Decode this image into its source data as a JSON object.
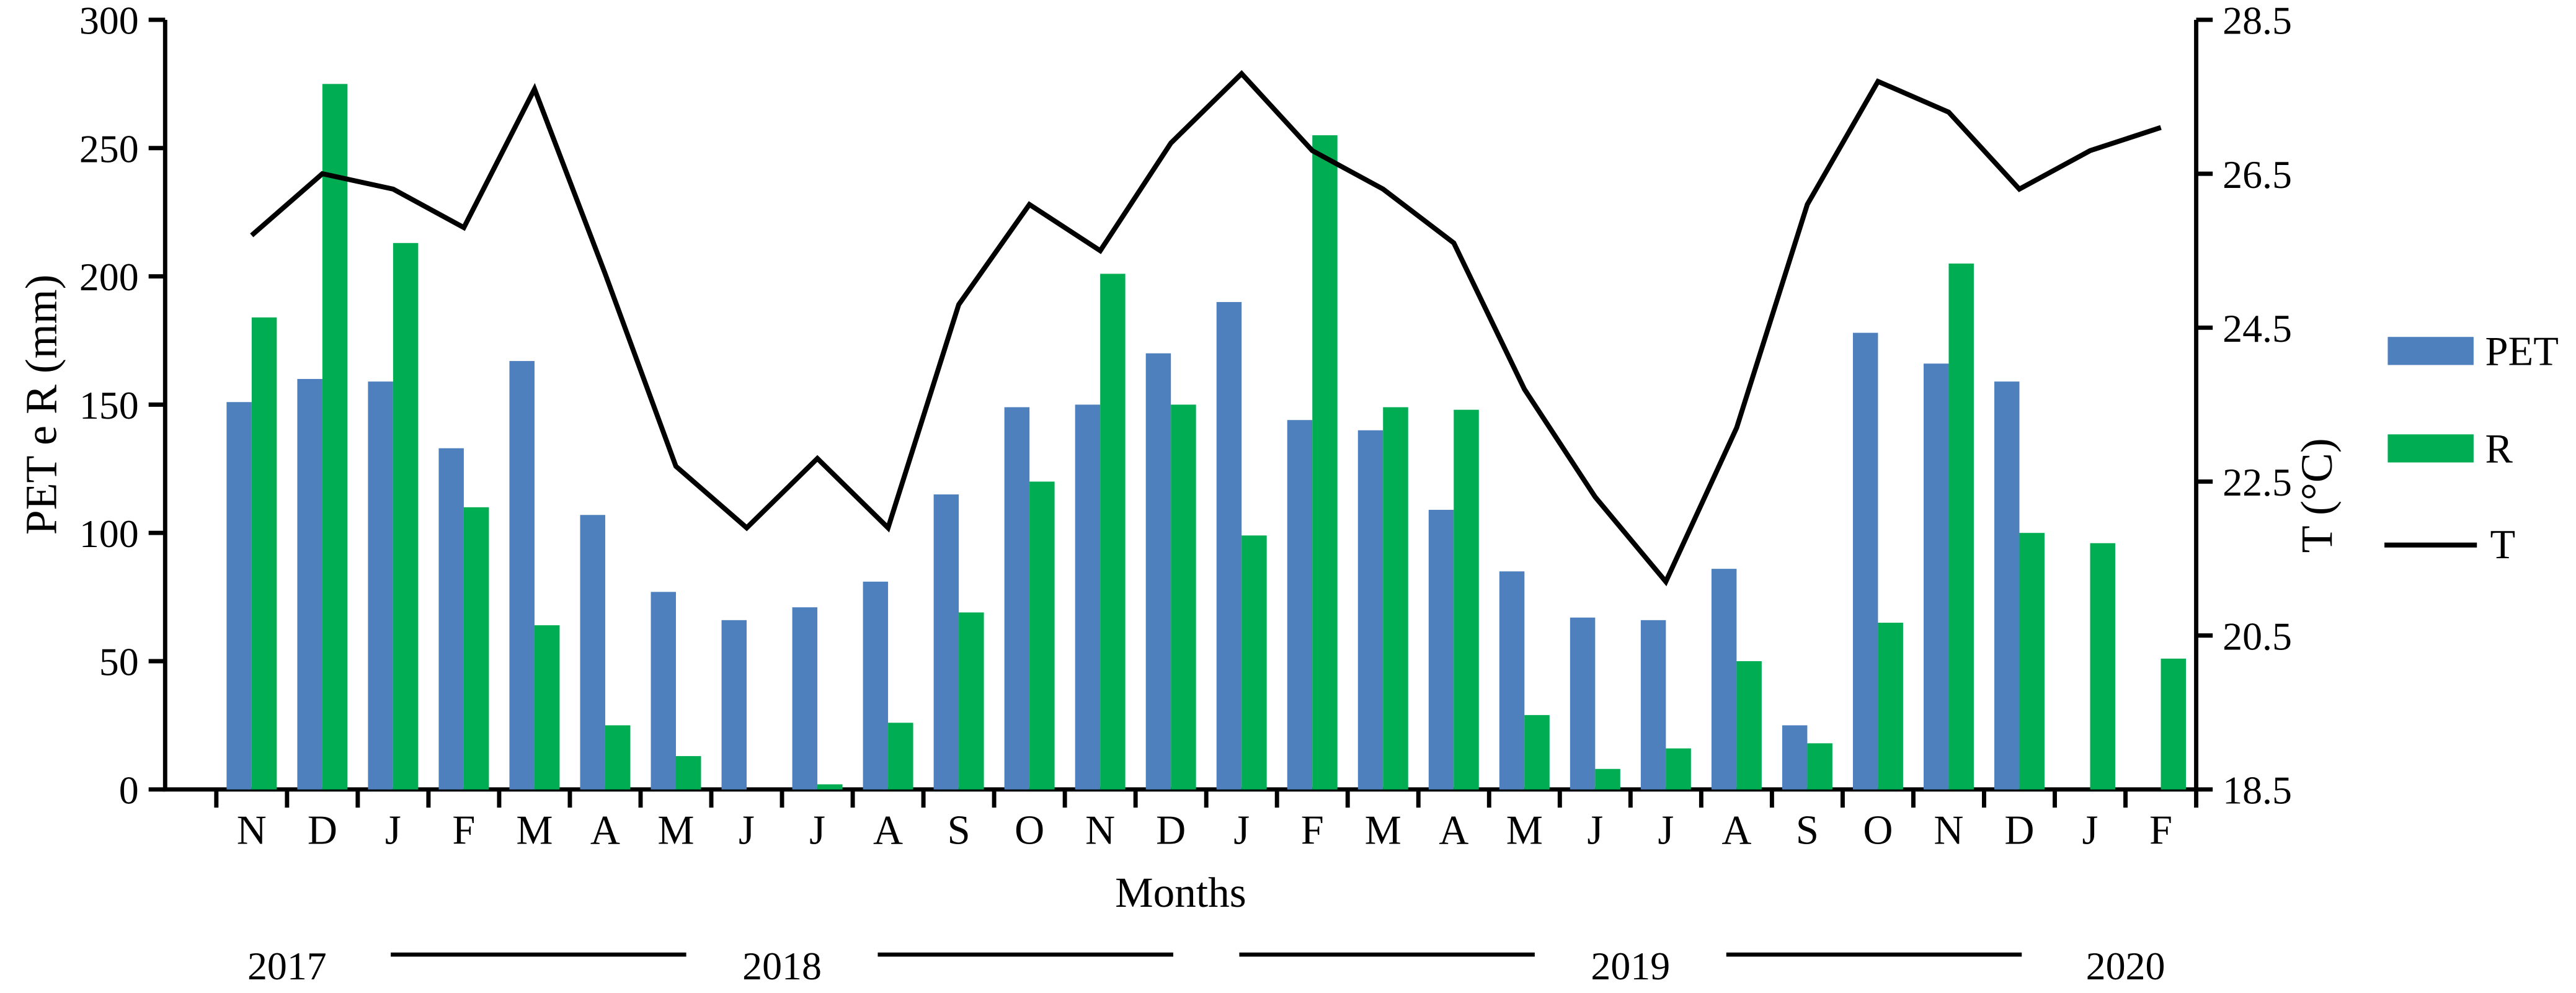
{
  "figure": {
    "background": "#ffffff",
    "axis_color": "#000000"
  },
  "chart_data": {
    "type": "combo",
    "categories": [
      "N",
      "D",
      "J",
      "F",
      "M",
      "A",
      "M",
      "J",
      "J",
      "A",
      "S",
      "O",
      "N",
      "D",
      "J",
      "F",
      "M",
      "A",
      "M",
      "J",
      "J",
      "A",
      "S",
      "O",
      "N",
      "D",
      "J",
      "F"
    ],
    "x_axis": {
      "title": "Months"
    },
    "year_groups": [
      {
        "label": "2017",
        "start": 0,
        "end": 1
      },
      {
        "label": "2018",
        "start": 2,
        "end": 13
      },
      {
        "label": "2019",
        "start": 14,
        "end": 25
      },
      {
        "label": "2020",
        "start": 26,
        "end": 27
      }
    ],
    "left_axis": {
      "title": "PET e R (mm)",
      "min": 0,
      "max": 300,
      "tick_step": 50,
      "tick_labels": [
        "300",
        "250",
        "200",
        "150",
        "100",
        "50",
        "0"
      ]
    },
    "right_axis": {
      "title": "T (°C)",
      "min": 18.5,
      "max": 28.5,
      "tick_labels": [
        "28.5",
        "26.5",
        "24.5",
        "22.5",
        "20.5",
        "18.5"
      ]
    },
    "series": [
      {
        "name": "PET",
        "type": "bar",
        "axis": "left",
        "color": "#4E80BE",
        "values": [
          151,
          160,
          159,
          133,
          167,
          107,
          77,
          66,
          71,
          81,
          115,
          149,
          150,
          170,
          190,
          144,
          140,
          109,
          85,
          67,
          66,
          86,
          25,
          178,
          166,
          159,
          0,
          0
        ]
      },
      {
        "name": "R",
        "type": "bar",
        "axis": "left",
        "color": "#00AD53",
        "values": [
          184,
          275,
          213,
          110,
          64,
          25,
          13,
          0,
          2,
          26,
          69,
          120,
          201,
          150,
          99,
          255,
          149,
          148,
          29,
          8,
          16,
          50,
          18,
          65,
          205,
          100,
          96,
          51
        ]
      },
      {
        "name": "T",
        "type": "line",
        "axis": "right",
        "color": "#000000",
        "values": [
          25.7,
          26.5,
          26.3,
          25.8,
          27.6,
          25.2,
          22.7,
          21.9,
          22.8,
          21.9,
          24.8,
          26.1,
          25.5,
          26.9,
          27.8,
          26.8,
          26.3,
          25.6,
          23.7,
          22.3,
          21.2,
          23.2,
          26.1,
          27.7,
          27.3,
          26.3,
          26.8,
          27.1
        ]
      }
    ],
    "legend": {
      "position": "right",
      "entries": [
        "PET",
        "R",
        "T"
      ]
    }
  }
}
